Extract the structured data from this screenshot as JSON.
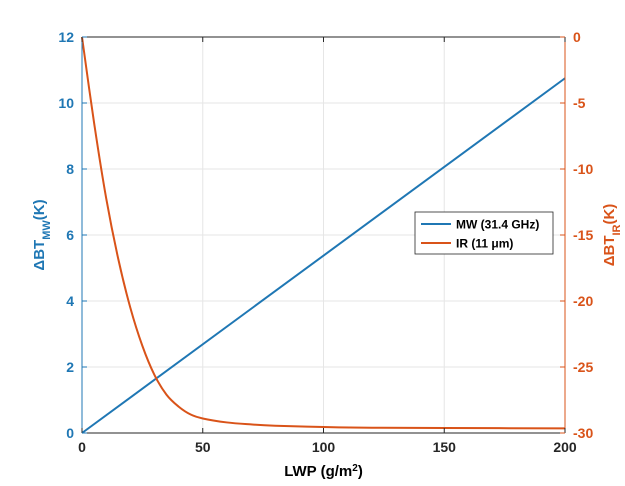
{
  "chart_data": {
    "type": "line",
    "title": "",
    "x": {
      "label_main": "LWP (g/m",
      "label_sup": "2",
      "label_close": ")",
      "lim": [
        0,
        200
      ],
      "ticks": [
        0,
        50,
        100,
        150,
        200
      ],
      "tick_labels": [
        "0",
        "50",
        "100",
        "150",
        "200"
      ]
    },
    "y_left": {
      "label_main": "ΔBT",
      "label_sub": "MW",
      "label_unit": "(K)",
      "lim": [
        0,
        12
      ],
      "ticks": [
        0,
        2,
        4,
        6,
        8,
        10,
        12
      ],
      "tick_labels": [
        "0",
        "2",
        "4",
        "6",
        "8",
        "10",
        "12"
      ],
      "color": "#1f77b4"
    },
    "y_right": {
      "label_main": "ΔBT",
      "label_sub": "IR",
      "label_unit": "(K)",
      "lim": [
        -30,
        0
      ],
      "ticks": [
        -30,
        -25,
        -20,
        -15,
        -10,
        -5,
        0
      ],
      "tick_labels": [
        "-30",
        "-25",
        "-20",
        "-15",
        "-10",
        "-5",
        "0"
      ],
      "color": "#d95319"
    },
    "grid": true,
    "legend_position": "center-right",
    "series": [
      {
        "name": "MW (31.4 GHz)",
        "axis": "left",
        "color": "#1f77b4",
        "x": [
          0,
          200
        ],
        "y": [
          0,
          10.75
        ]
      },
      {
        "name": "IR (11 μm)",
        "axis": "right",
        "color": "#d95319",
        "x": [
          0,
          5,
          10,
          15,
          20,
          25,
          30,
          35,
          40,
          45,
          50,
          60,
          70,
          80,
          100,
          120,
          150,
          200
        ],
        "y": [
          0,
          -6.5,
          -12.2,
          -16.8,
          -20.5,
          -23.4,
          -25.6,
          -27.1,
          -28.0,
          -28.6,
          -28.9,
          -29.2,
          -29.35,
          -29.45,
          -29.55,
          -29.6,
          -29.62,
          -29.65
        ]
      }
    ]
  }
}
